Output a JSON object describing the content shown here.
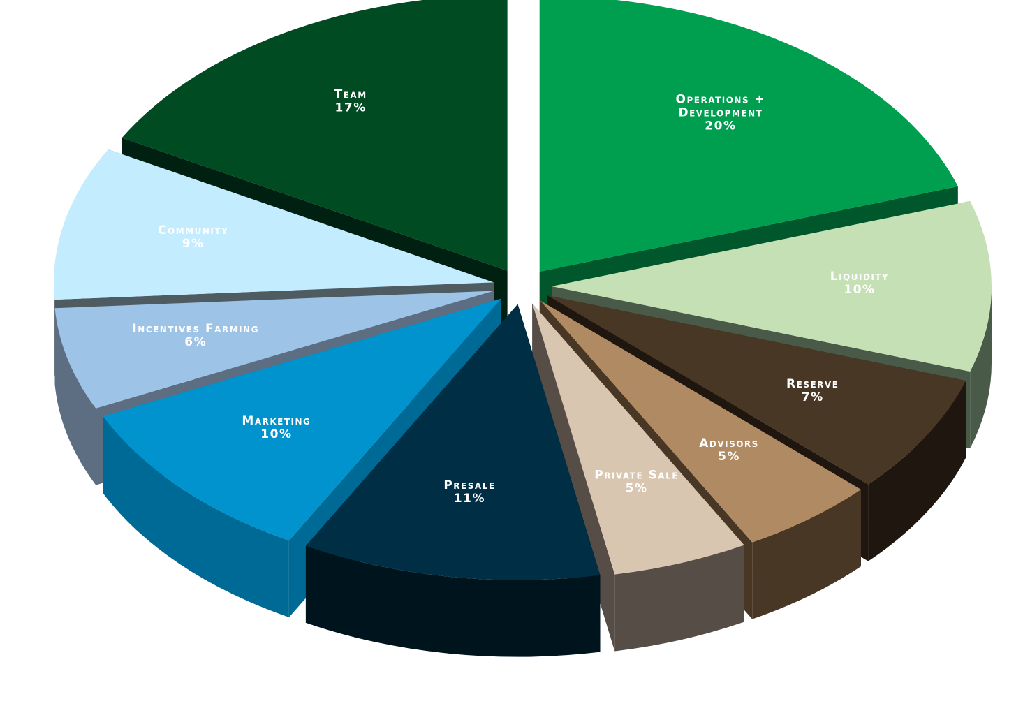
{
  "chart_data": {
    "type": "pie",
    "style": "3d-exploded",
    "slices": [
      {
        "label": "Operations + Development",
        "value": 20,
        "value_label": "20%",
        "color": "#009E4F",
        "side_color": "#00572B"
      },
      {
        "label": "Liquidity",
        "value": 10,
        "value_label": "10%",
        "color": "#C6E0B6",
        "side_color": "#4A5A48"
      },
      {
        "label": "Reserve",
        "value": 7,
        "value_label": "7%",
        "color": "#493726",
        "side_color": "#1E160F"
      },
      {
        "label": "Advisors",
        "value": 5,
        "value_label": "5%",
        "color": "#B08A63",
        "side_color": "#493726"
      },
      {
        "label": "Private Sale",
        "value": 5,
        "value_label": "5%",
        "color": "#D9C6B0",
        "side_color": "#564D47"
      },
      {
        "label": "Presale",
        "value": 11,
        "value_label": "11%",
        "color": "#002F45",
        "side_color": "#00141E"
      },
      {
        "label": "Marketing",
        "value": 10,
        "value_label": "10%",
        "color": "#0093CD",
        "side_color": "#006A96"
      },
      {
        "label": "Incentives Farming",
        "value": 6,
        "value_label": "6%",
        "color": "#9DC3E6",
        "side_color": "#5E6E82"
      },
      {
        "label": "Community",
        "value": 9,
        "value_label": "9%",
        "color": "#C3ECFF",
        "side_color": "#4E5B61"
      },
      {
        "label": "Team",
        "value": 17,
        "value_label": "17%",
        "color": "#004B22",
        "side_color": "#002011"
      }
    ]
  }
}
